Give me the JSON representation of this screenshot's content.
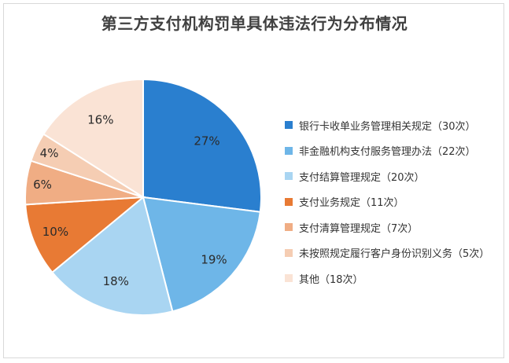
{
  "chart_data": {
    "type": "pie",
    "title": "第三方支付机构罚单具体违法行为分布情况",
    "slices": [
      {
        "label": "银行卡收单业务管理相关规定（30次）",
        "value": 27,
        "display": "27%",
        "color": "#2a7fcf"
      },
      {
        "label": "非金融机构支付服务管理办法（22次）",
        "value": 19,
        "display": "19%",
        "color": "#6eb6e8"
      },
      {
        "label": "支付结算管理规定（20次）",
        "value": 18,
        "display": "18%",
        "color": "#a9d5f2"
      },
      {
        "label": "支付业务规定（11次）",
        "value": 10,
        "display": "10%",
        "color": "#e87a34"
      },
      {
        "label": "支付清算管理规定（7次）",
        "value": 6,
        "display": "6%",
        "color": "#f0ad84"
      },
      {
        "label": "未按照规定履行客户身份识别义务（5次）",
        "value": 4,
        "display": "4%",
        "color": "#f5cdb3"
      },
      {
        "label": "其他（18次）",
        "value": 16,
        "display": "16%",
        "color": "#fae3d5"
      }
    ],
    "legend_position": "right"
  }
}
